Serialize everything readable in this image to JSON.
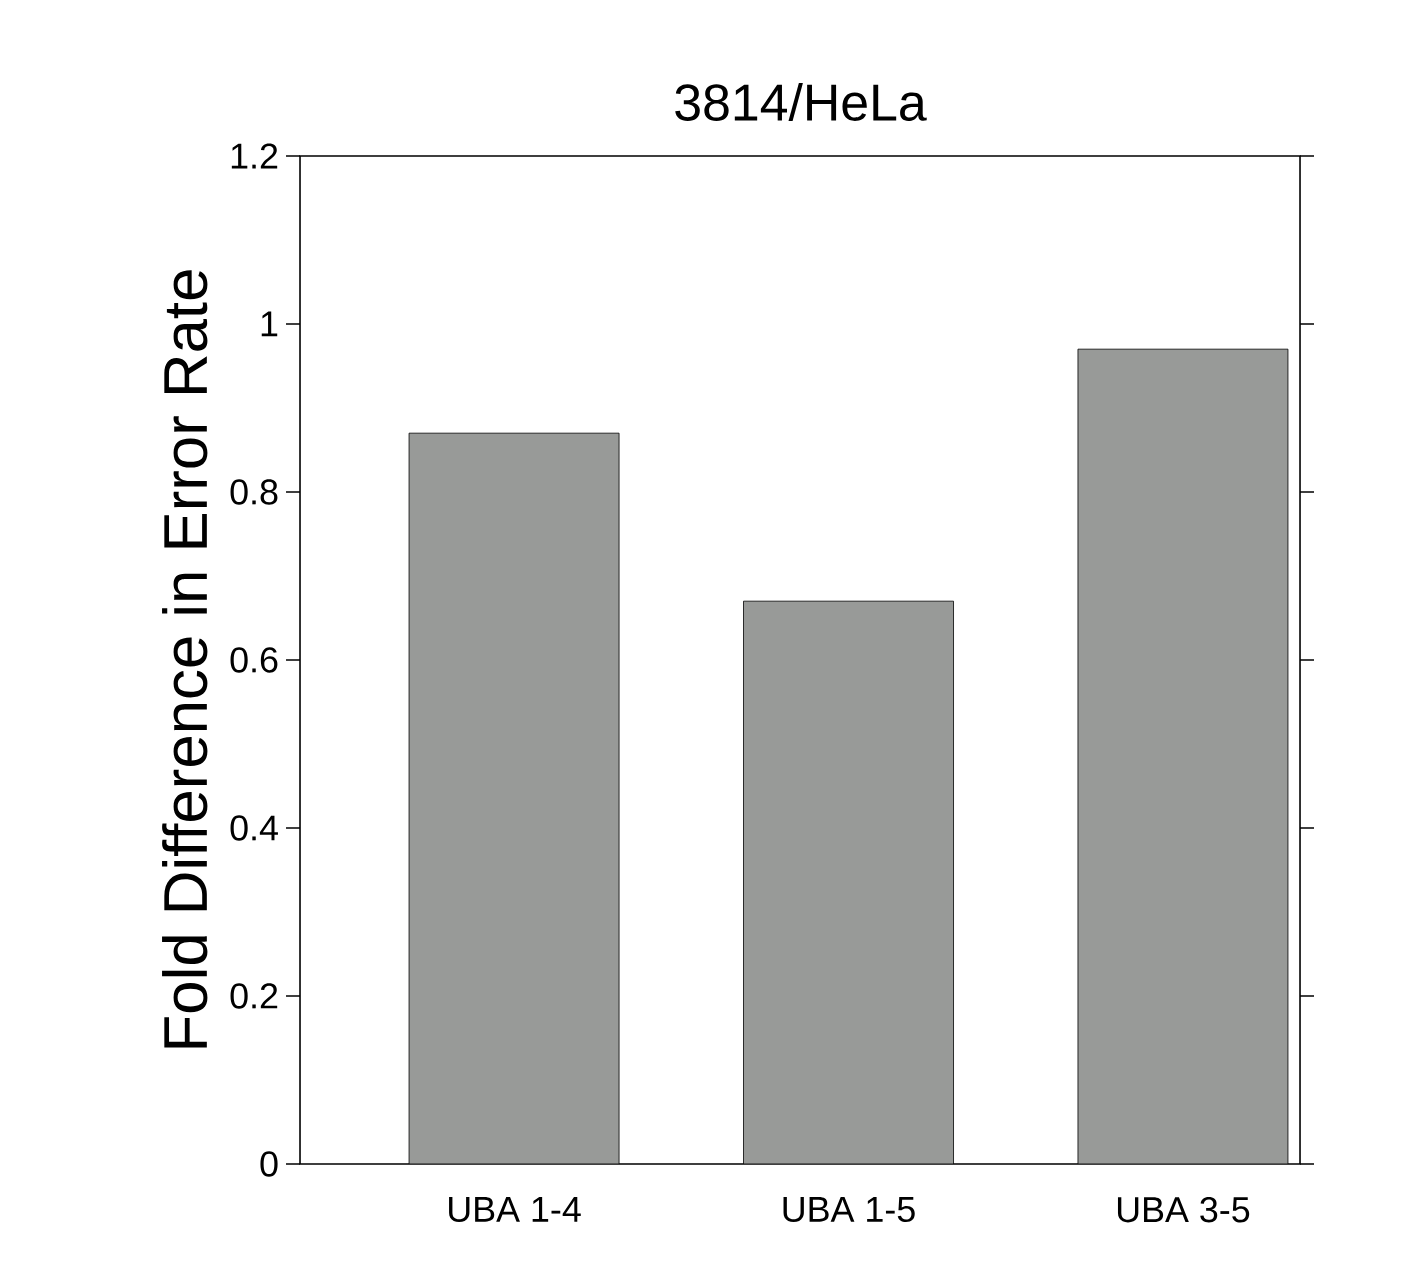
{
  "chart_data": {
    "type": "bar",
    "title": "3814/HeLa",
    "ylabel": "Fold Difference in Error Rate",
    "categories": [
      "UBA 1-4",
      "UBA 1-5",
      "UBA 3-5"
    ],
    "values": [
      0.87,
      0.67,
      0.97
    ],
    "color": "#989a98",
    "ylim": [
      0,
      1.2
    ],
    "yticks": [
      0,
      0.2,
      0.4,
      0.6,
      0.8,
      1,
      1.2
    ],
    "grid": false
  }
}
